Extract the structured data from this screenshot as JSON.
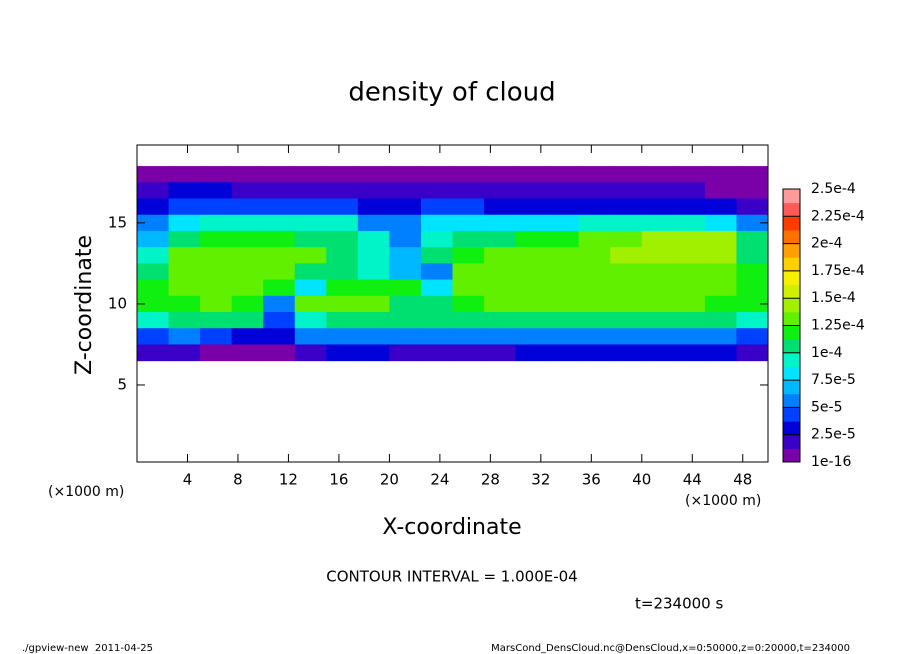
{
  "chart_data": {
    "type": "heatmap",
    "title": "density of cloud",
    "x_label": "X-coordinate",
    "y_label": "Z-coordinate",
    "unit_label": "(×1000 m)",
    "contour_interval": "CONTOUR INTERVAL = 1.000E-04",
    "time_label": "t=234000 s",
    "footer_left": "./gpview-new  2011-04-25",
    "footer_right": "MarsCond_DensCloud.nc@DensCloud,x=0:50000,z=0:20000,t=234000",
    "xlim": [
      0,
      50
    ],
    "ylim": [
      0.25,
      19.8
    ],
    "xticks": [
      4,
      8,
      12,
      16,
      20,
      24,
      28,
      32,
      36,
      40,
      44,
      48
    ],
    "yticks": [
      5,
      10,
      15
    ],
    "x": [
      1.25,
      3.75,
      6.25,
      8.75,
      11.25,
      13.75,
      16.25,
      18.75,
      21.25,
      23.75,
      26.25,
      28.75,
      31.25,
      33.75,
      36.25,
      38.75,
      41.25,
      43.75,
      46.25,
      48.75
    ],
    "z": [
      18,
      17,
      16,
      15,
      14,
      13,
      12,
      11,
      10,
      9,
      8,
      7
    ],
    "values": [
      [
        8e-06,
        8e-06,
        8e-06,
        8e-06,
        8e-06,
        8e-06,
        8e-06,
        8e-06,
        8e-06,
        8e-06,
        8e-06,
        8e-06,
        8e-06,
        8e-06,
        8e-06,
        8e-06,
        8e-06,
        8e-06,
        8e-06,
        8e-06
      ],
      [
        2e-05,
        2.5e-05,
        2.5e-05,
        2e-05,
        2e-05,
        2e-05,
        2e-05,
        1.8e-05,
        1.5e-05,
        1.8e-05,
        2e-05,
        2e-05,
        2e-05,
        1.8e-05,
        1.5e-05,
        1.5e-05,
        1.5e-05,
        1.5e-05,
        1.2e-05,
        1e-05
      ],
      [
        3e-05,
        4e-05,
        4.5e-05,
        4.5e-05,
        4.5e-05,
        4.5e-05,
        4e-05,
        3.5e-05,
        3e-05,
        4e-05,
        4e-05,
        3.5e-05,
        3.5e-05,
        3.5e-05,
        3.5e-05,
        3e-05,
        3e-05,
        3e-05,
        2.5e-05,
        2e-05
      ],
      [
        5e-05,
        8e-05,
        9e-05,
        9.5e-05,
        9.5e-05,
        9.5e-05,
        9e-05,
        6e-05,
        5e-05,
        8e-05,
        8e-05,
        8.5e-05,
        8.5e-05,
        8.5e-05,
        9e-05,
        9e-05,
        9e-05,
        9e-05,
        8e-05,
        5e-05
      ],
      [
        7e-05,
        0.000105,
        0.000115,
        0.000115,
        0.000115,
        0.00011,
        0.000105,
        9e-05,
        6e-05,
        9e-05,
        0.0001,
        0.00011,
        0.000115,
        0.00012,
        0.000125,
        0.00013,
        0.00014,
        0.000145,
        0.00014,
        0.0001
      ],
      [
        9e-05,
        0.000125,
        0.00013,
        0.000135,
        0.00013,
        0.000125,
        0.00011,
        9e-05,
        7e-05,
        0.0001,
        0.00012,
        0.00013,
        0.000135,
        0.000135,
        0.000135,
        0.00014,
        0.00014,
        0.000145,
        0.00014,
        0.00011
      ],
      [
        0.00011,
        0.00013,
        0.000135,
        0.000135,
        0.00013,
        0.00011,
        0.000105,
        9e-05,
        7e-05,
        6e-05,
        0.00013,
        0.000135,
        0.000135,
        0.000135,
        0.000135,
        0.000135,
        0.000135,
        0.000135,
        0.00013,
        0.000115
      ],
      [
        0.00012,
        0.00013,
        0.00013,
        0.00013,
        0.00012,
        8e-05,
        0.000115,
        0.00012,
        0.000115,
        8e-05,
        0.00013,
        0.00013,
        0.00013,
        0.00013,
        0.00013,
        0.00013,
        0.00013,
        0.00013,
        0.00013,
        0.00012
      ],
      [
        0.000115,
        0.00012,
        0.000125,
        0.00012,
        6e-05,
        0.000125,
        0.00013,
        0.00013,
        0.00011,
        0.0001,
        0.00012,
        0.000125,
        0.000125,
        0.000125,
        0.000125,
        0.000125,
        0.000125,
        0.000125,
        0.00012,
        0.000115
      ],
      [
        9e-05,
        0.000105,
        0.0001,
        0.0001,
        4e-05,
        9e-05,
        0.00011,
        0.00011,
        0.000105,
        0.000105,
        0.000105,
        0.000105,
        0.0001,
        0.0001,
        0.0001,
        0.0001,
        0.0001,
        0.0001,
        0.0001,
        9e-05
      ],
      [
        4e-05,
        5e-05,
        4e-05,
        3e-05,
        3e-05,
        5e-05,
        6e-05,
        6e-05,
        6e-05,
        5e-05,
        5e-05,
        6e-05,
        5e-05,
        5e-05,
        5e-05,
        5e-05,
        5e-05,
        5e-05,
        5e-05,
        4e-05
      ],
      [
        1.5e-05,
        1.5e-05,
        1e-05,
        1e-05,
        1e-05,
        2e-05,
        2.5e-05,
        2.5e-05,
        1.5e-05,
        1.5e-05,
        2e-05,
        2e-05,
        2.5e-05,
        2.5e-05,
        2.5e-05,
        2.5e-05,
        2.5e-05,
        2.5e-05,
        2.5e-05,
        2e-05
      ]
    ],
    "colorbar": {
      "ticks": [
        {
          "value": 1e-16,
          "label": "1e-16"
        },
        {
          "value": 2.5e-05,
          "label": "2.5e-5"
        },
        {
          "value": 5e-05,
          "label": "5e-5"
        },
        {
          "value": 7.5e-05,
          "label": "7.5e-5"
        },
        {
          "value": 0.0001,
          "label": "1e-4"
        },
        {
          "value": 0.000125,
          "label": "1.25e-4"
        },
        {
          "value": 0.00015,
          "label": "1.5e-4"
        },
        {
          "value": 0.000175,
          "label": "1.75e-4"
        },
        {
          "value": 0.0002,
          "label": "2e-4"
        },
        {
          "value": 0.000225,
          "label": "2.25e-4"
        },
        {
          "value": 0.00025,
          "label": "2.5e-4"
        }
      ],
      "colors": [
        "#7a00a8",
        "#3a00c8",
        "#0000d8",
        "#0040ff",
        "#0080ff",
        "#00b8ff",
        "#00e4ff",
        "#00f4c8",
        "#00e070",
        "#10f010",
        "#60f000",
        "#a0f000",
        "#d0f000",
        "#f4f000",
        "#ffd000",
        "#ffa000",
        "#ff7000",
        "#ff3c00",
        "#ff5a5a",
        "#ff9a9a"
      ]
    }
  }
}
